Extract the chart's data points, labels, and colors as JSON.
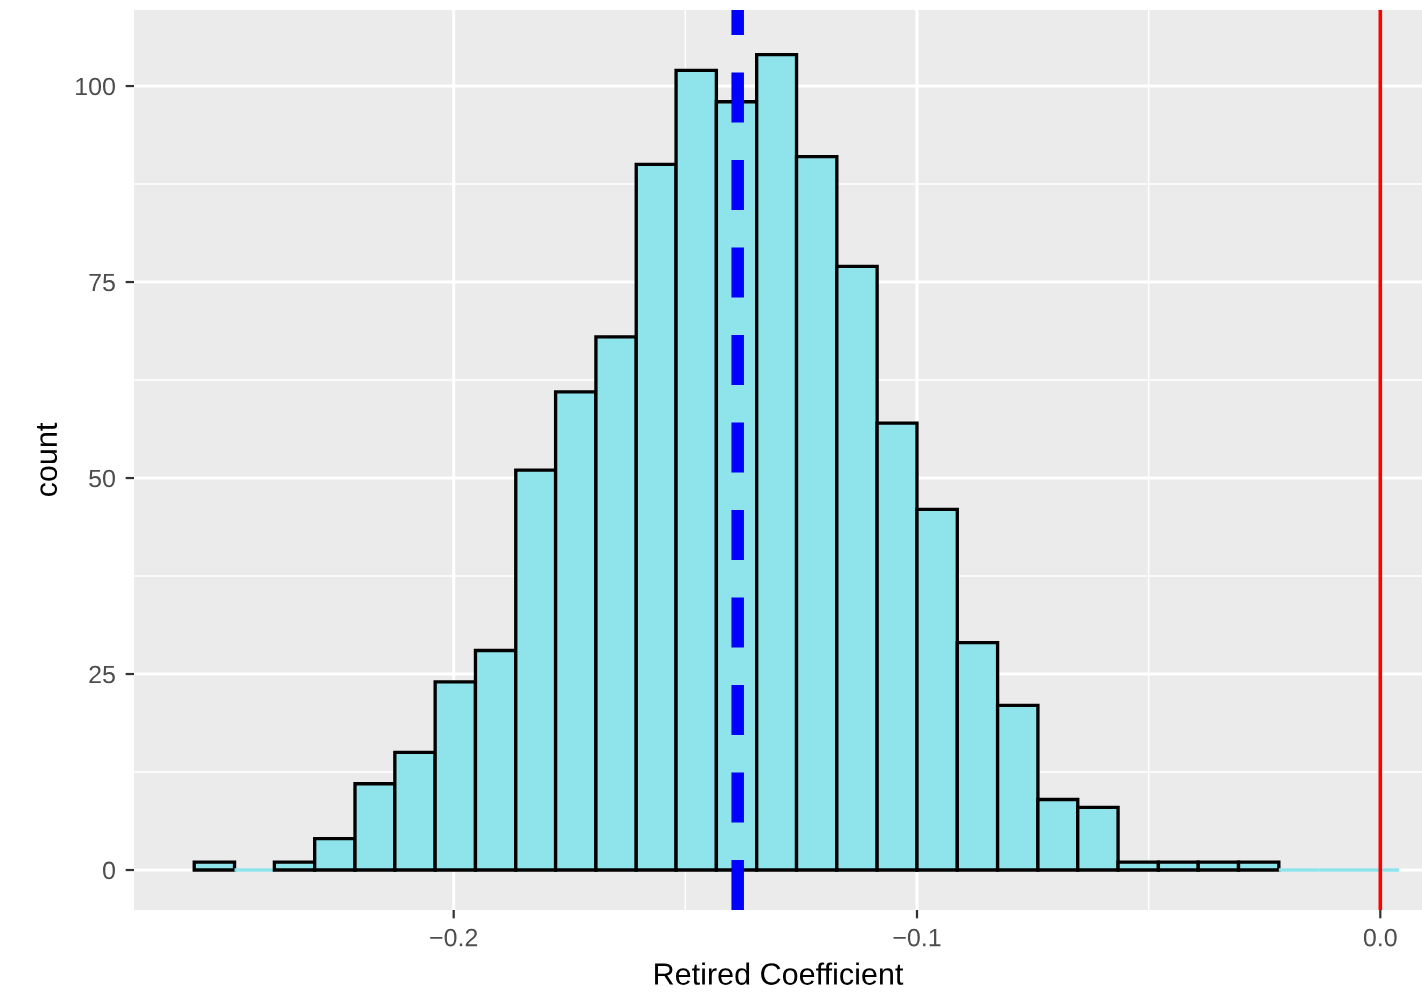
{
  "chart_data": {
    "type": "histogram",
    "xlabel": "Retired Coefficient",
    "ylabel": "count",
    "bins": [
      -0.256,
      -0.2473,
      -0.2387,
      -0.23,
      -0.2213,
      -0.2127,
      -0.204,
      -0.1953,
      -0.1866,
      -0.178,
      -0.1693,
      -0.1606,
      -0.152,
      -0.1433,
      -0.1346,
      -0.126,
      -0.1173,
      -0.1086,
      -0.1,
      -0.0913,
      -0.0826,
      -0.0739,
      -0.0653,
      -0.0566,
      -0.0479,
      -0.0393,
      -0.0306,
      -0.0219,
      -0.0133,
      -0.0046,
      0.0041
    ],
    "values": [
      1,
      0,
      1,
      4,
      11,
      15,
      24,
      28,
      51,
      61,
      68,
      90,
      102,
      98,
      104,
      91,
      77,
      57,
      46,
      29,
      21,
      9,
      8,
      1,
      1,
      1,
      1,
      0,
      0,
      0
    ],
    "color": "#8fe3eb",
    "xlim": [
      -0.269,
      0.009
    ],
    "ylim": [
      -5.1,
      109.7
    ],
    "xticks": [
      {
        "value": -0.2,
        "label": "−0.2"
      },
      {
        "value": -0.1,
        "label": "−0.1"
      },
      {
        "value": 0.0,
        "label": "0.0"
      }
    ],
    "yticks": [
      0,
      25,
      50,
      75,
      100
    ],
    "grid": true,
    "ref_lines": [
      {
        "axis": "x",
        "value": -0.1387,
        "color": "#0000ff",
        "line_style": "dashed"
      },
      {
        "axis": "x",
        "value": 0.0,
        "color": "#ff0000",
        "line_style": "solid"
      }
    ]
  }
}
